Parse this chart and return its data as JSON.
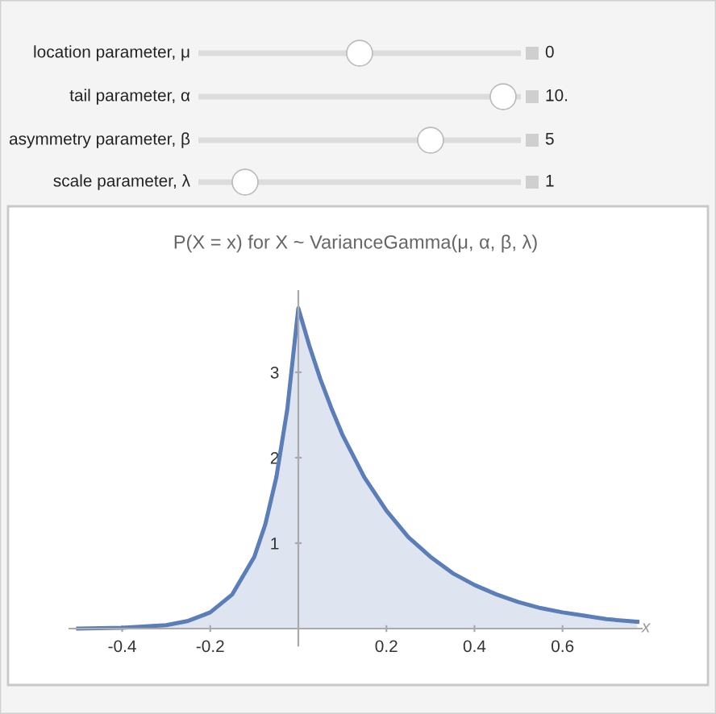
{
  "chart_data": {
    "type": "area",
    "title": "P(X = x) for X ~ VarianceGamma(μ, α, β, λ)",
    "xlabel": "x",
    "annotations": [
      "location parameter, μ",
      "0",
      "tail parameter, α",
      "10.",
      "asymmetry parameter, β",
      "5",
      "scale parameter, λ",
      "1"
    ],
    "x": [
      -0.5,
      -0.4,
      -0.3,
      -0.25,
      -0.2,
      -0.15,
      -0.1,
      -0.075,
      -0.05,
      -0.025,
      0,
      0.025,
      0.05,
      0.075,
      0.1,
      0.15,
      0.2,
      0.25,
      0.3,
      0.35,
      0.4,
      0.45,
      0.5,
      0.55,
      0.6,
      0.65,
      0.7,
      0.77
    ],
    "series": [
      {
        "color": "#5b7db8",
        "values": [
          0.0,
          0.01,
          0.04,
          0.09,
          0.19,
          0.4,
          0.84,
          1.22,
          1.77,
          2.57,
          3.75,
          3.31,
          2.92,
          2.58,
          2.27,
          1.77,
          1.38,
          1.07,
          0.84,
          0.65,
          0.51,
          0.4,
          0.31,
          0.24,
          0.19,
          0.15,
          0.11,
          0.08
        ]
      }
    ],
    "xlim": [
      -0.52,
      0.78
    ],
    "ylim": [
      -0.2,
      3.95
    ],
    "xticks": [
      -0.4,
      -0.2,
      0.2,
      0.4,
      0.6
    ],
    "yticks": [
      1,
      2,
      3
    ],
    "grid": false,
    "legend": false
  }
}
